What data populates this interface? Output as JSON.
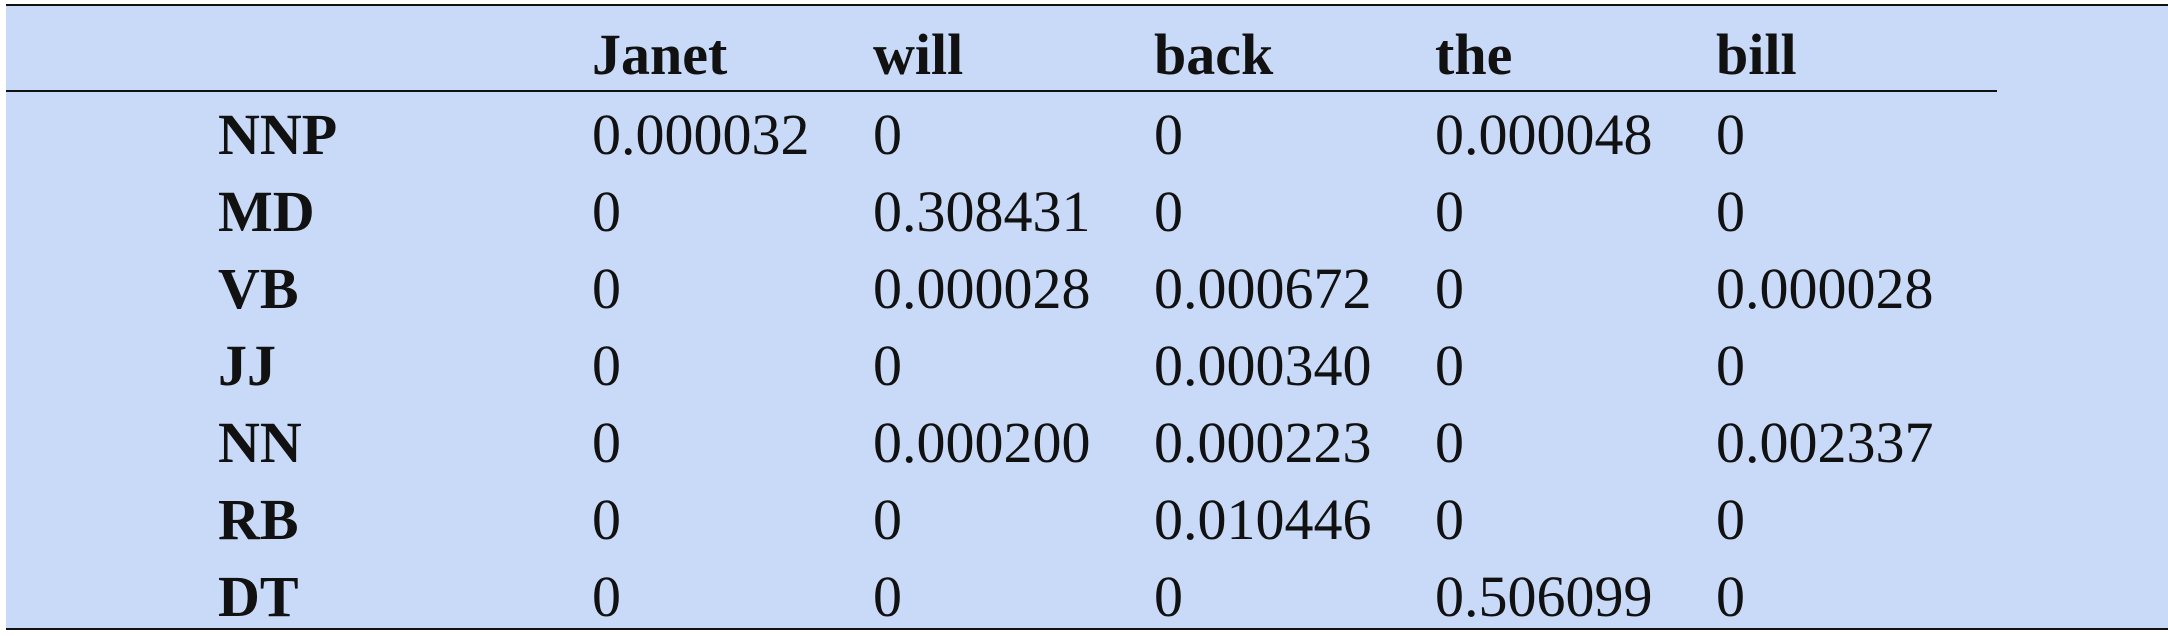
{
  "table": {
    "columns": [
      "Janet",
      "will",
      "back",
      "the",
      "bill"
    ],
    "rows": [
      {
        "label": "NNP",
        "values": [
          "0.000032",
          "0",
          "0",
          "0.000048",
          "0"
        ]
      },
      {
        "label": "MD",
        "values": [
          "0",
          "0.308431",
          "0",
          "0",
          "0"
        ]
      },
      {
        "label": "VB",
        "values": [
          "0",
          "0.000028",
          "0.000672",
          "0",
          "0.000028"
        ]
      },
      {
        "label": "JJ",
        "values": [
          "0",
          "0",
          "0.000340",
          "0",
          "0"
        ]
      },
      {
        "label": "NN",
        "values": [
          "0",
          "0.000200",
          "0.000223",
          "0",
          "0.002337"
        ]
      },
      {
        "label": "RB",
        "values": [
          "0",
          "0",
          "0.010446",
          "0",
          "0"
        ]
      },
      {
        "label": "DT",
        "values": [
          "0",
          "0",
          "0",
          "0.506099",
          "0"
        ]
      }
    ],
    "colors": {
      "background": "#c9daf8",
      "rule": "#111111",
      "text": "#111111"
    }
  }
}
